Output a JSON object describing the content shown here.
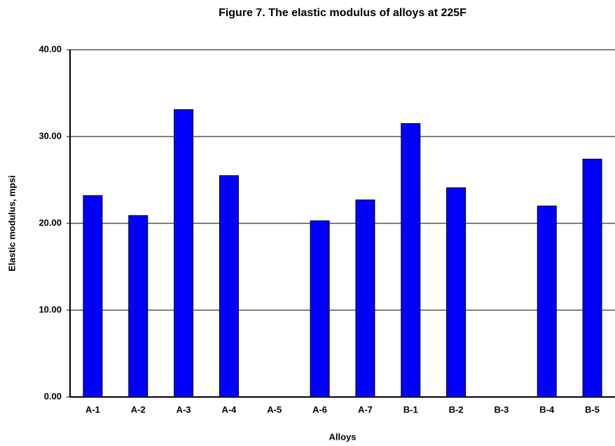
{
  "chart_data": {
    "type": "bar",
    "title": "Figure 7. The elastic modulus of alloys at 225F",
    "x_label": "Alloys",
    "y_label": "Elastic modulus, mpsi",
    "categories": [
      "A-1",
      "A-2",
      "A-3",
      "A-4",
      "A-5",
      "A-6",
      "A-7",
      "B-1",
      "B-2",
      "B-3",
      "B-4",
      "B-5"
    ],
    "values": [
      23.2,
      20.9,
      33.1,
      25.5,
      null,
      20.3,
      22.7,
      31.5,
      24.1,
      null,
      22.0,
      27.4
    ],
    "color": "#0000ff",
    "ylim": [
      0,
      40
    ],
    "yticks": [
      {
        "value": 0,
        "label": "0.00"
      },
      {
        "value": 10,
        "label": "10.00"
      },
      {
        "value": 20,
        "label": "20.00"
      },
      {
        "value": 30,
        "label": "30.00"
      },
      {
        "value": 40,
        "label": "40.00"
      }
    ],
    "grid": true
  }
}
